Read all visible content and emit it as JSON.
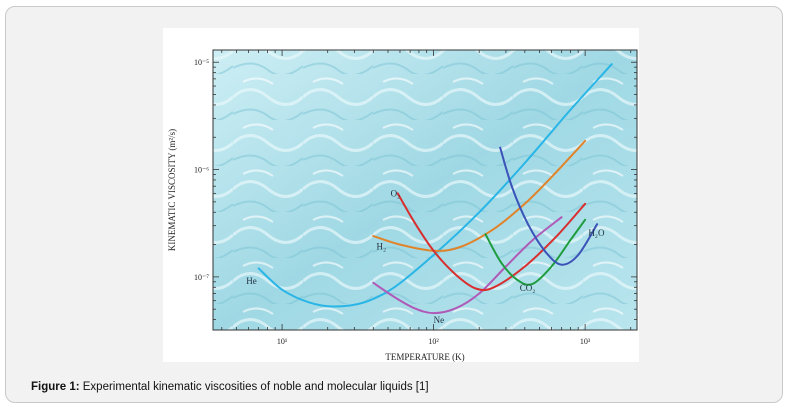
{
  "caption": {
    "label": "Figure 1:",
    "text": "Experimental kinematic viscosities of noble and molecular liquids [1]"
  },
  "colors": {
    "frame_bg": "#f2f2f2",
    "water_light": "#bfe8f0",
    "water_dark": "#7fc6d6"
  },
  "chart_data": {
    "type": "line",
    "xlabel": "TEMPERATURE (K)",
    "ylabel": "KINEMATIC VISCOSITY (m²/s)",
    "xscale": "log",
    "yscale": "log",
    "xlim": [
      3.5,
      2200
    ],
    "ylim": [
      3.2e-08,
      1.3e-05
    ],
    "x_ticks": [
      {
        "value": 10,
        "label": "10¹"
      },
      {
        "value": 100,
        "label": "10²"
      },
      {
        "value": 1000,
        "label": "10³"
      }
    ],
    "y_ticks": [
      {
        "value": 1e-07,
        "label": "10⁻⁷"
      },
      {
        "value": 1e-06,
        "label": "10⁻⁶"
      },
      {
        "value": 1e-05,
        "label": "10⁻⁵"
      }
    ],
    "series": [
      {
        "name": "He",
        "color": "#29b6e6",
        "label_at": [
          5.8,
          8.6e-08
        ],
        "points": [
          [
            7,
            1.2e-07
          ],
          [
            10,
            7.6e-08
          ],
          [
            15,
            5.8e-08
          ],
          [
            22,
            5.3e-08
          ],
          [
            35,
            5.8e-08
          ],
          [
            55,
            8e-08
          ],
          [
            100,
            1.6e-07
          ],
          [
            200,
            4e-07
          ],
          [
            400,
            1.15e-06
          ],
          [
            800,
            3.6e-06
          ],
          [
            1500,
            9.6e-06
          ]
        ]
      },
      {
        "name": "Ne",
        "color": "#b05ab8",
        "label_at": [
          100,
          3.7e-08
        ],
        "points": [
          [
            40,
            8.8e-08
          ],
          [
            55,
            6.5e-08
          ],
          [
            75,
            5.1e-08
          ],
          [
            100,
            4.6e-08
          ],
          [
            140,
            5.1e-08
          ],
          [
            200,
            7e-08
          ],
          [
            300,
            1.25e-07
          ],
          [
            450,
            2.2e-07
          ],
          [
            700,
            3.6e-07
          ]
        ]
      },
      {
        "name": "H₂",
        "color": "#e0832a",
        "label_at": [
          42,
          1.8e-07
        ],
        "points": [
          [
            40,
            2.4e-07
          ],
          [
            60,
            2e-07
          ],
          [
            100,
            1.75e-07
          ],
          [
            150,
            1.9e-07
          ],
          [
            250,
            2.8e-07
          ],
          [
            400,
            4.8e-07
          ],
          [
            600,
            8.5e-07
          ],
          [
            1000,
            1.85e-06
          ]
        ]
      },
      {
        "name": "O₂",
        "color": "#d92e2e",
        "label_at": [
          52,
          5.6e-07
        ],
        "points": [
          [
            58,
            6e-07
          ],
          [
            75,
            3.2e-07
          ],
          [
            100,
            1.75e-07
          ],
          [
            140,
            1.05e-07
          ],
          [
            190,
            7.8e-08
          ],
          [
            250,
            8e-08
          ],
          [
            400,
            1.25e-07
          ],
          [
            650,
            2.4e-07
          ],
          [
            1000,
            4.8e-07
          ]
        ]
      },
      {
        "name": "CO₂",
        "color": "#1f9c3e",
        "label_at": [
          370,
          7.4e-08
        ],
        "points": [
          [
            220,
            2.5e-07
          ],
          [
            280,
            1.35e-07
          ],
          [
            360,
            9.3e-08
          ],
          [
            450,
            8.6e-08
          ],
          [
            600,
            1.25e-07
          ],
          [
            800,
            2.2e-07
          ],
          [
            1000,
            3.4e-07
          ]
        ]
      },
      {
        "name": "H₂O",
        "color": "#3b52b8",
        "label_at": [
          1050,
          2.4e-07
        ],
        "points": [
          [
            275,
            1.6e-06
          ],
          [
            330,
            6.8e-07
          ],
          [
            420,
            3.1e-07
          ],
          [
            550,
            1.7e-07
          ],
          [
            700,
            1.3e-07
          ],
          [
            900,
            1.6e-07
          ],
          [
            1200,
            3.1e-07
          ]
        ]
      }
    ]
  }
}
